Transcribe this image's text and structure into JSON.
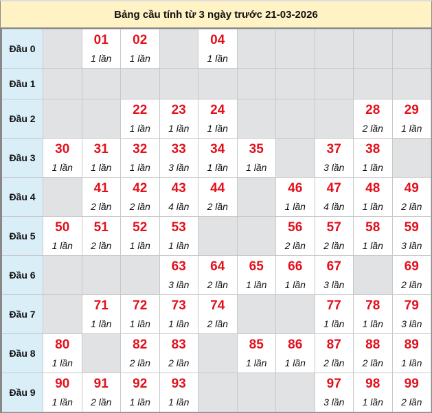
{
  "title": "Bảng cầu tính từ 3 ngày trước 21-03-2026",
  "colors": {
    "title_bg": "#fff2c4",
    "head_bg": "#daeef8",
    "empty_bg": "#e1e2e4",
    "number": "#e3101c"
  },
  "rows": [
    {
      "label": "Đầu 0",
      "cells": [
        null,
        {
          "num": "01",
          "count": "1 lần"
        },
        {
          "num": "02",
          "count": "1 lần"
        },
        null,
        {
          "num": "04",
          "count": "1 lần"
        },
        null,
        null,
        null,
        null,
        null
      ]
    },
    {
      "label": "Đầu 1",
      "cells": [
        null,
        null,
        null,
        null,
        null,
        null,
        null,
        null,
        null,
        null
      ]
    },
    {
      "label": "Đầu 2",
      "cells": [
        null,
        null,
        {
          "num": "22",
          "count": "1 lần"
        },
        {
          "num": "23",
          "count": "1 lần"
        },
        {
          "num": "24",
          "count": "1 lần"
        },
        null,
        null,
        null,
        {
          "num": "28",
          "count": "2 lần"
        },
        {
          "num": "29",
          "count": "1 lần"
        }
      ]
    },
    {
      "label": "Đầu 3",
      "cells": [
        {
          "num": "30",
          "count": "1 lần"
        },
        {
          "num": "31",
          "count": "1 lần"
        },
        {
          "num": "32",
          "count": "1 lần"
        },
        {
          "num": "33",
          "count": "3 lần"
        },
        {
          "num": "34",
          "count": "1 lần"
        },
        {
          "num": "35",
          "count": "1 lần"
        },
        null,
        {
          "num": "37",
          "count": "3 lần"
        },
        {
          "num": "38",
          "count": "1 lần"
        },
        null
      ]
    },
    {
      "label": "Đầu 4",
      "cells": [
        null,
        {
          "num": "41",
          "count": "2 lần"
        },
        {
          "num": "42",
          "count": "2 lần"
        },
        {
          "num": "43",
          "count": "4 lần"
        },
        {
          "num": "44",
          "count": "2 lần"
        },
        null,
        {
          "num": "46",
          "count": "1 lần"
        },
        {
          "num": "47",
          "count": "4 lần"
        },
        {
          "num": "48",
          "count": "1 lần"
        },
        {
          "num": "49",
          "count": "2 lần"
        }
      ]
    },
    {
      "label": "Đầu 5",
      "cells": [
        {
          "num": "50",
          "count": "1 lần"
        },
        {
          "num": "51",
          "count": "2 lần"
        },
        {
          "num": "52",
          "count": "1 lần"
        },
        {
          "num": "53",
          "count": "1 lần"
        },
        null,
        null,
        {
          "num": "56",
          "count": "2 lần"
        },
        {
          "num": "57",
          "count": "2 lần"
        },
        {
          "num": "58",
          "count": "1 lần"
        },
        {
          "num": "59",
          "count": "3 lần"
        }
      ]
    },
    {
      "label": "Đầu 6",
      "cells": [
        null,
        null,
        null,
        {
          "num": "63",
          "count": "3 lần"
        },
        {
          "num": "64",
          "count": "2 lần"
        },
        {
          "num": "65",
          "count": "1 lần"
        },
        {
          "num": "66",
          "count": "1 lần"
        },
        {
          "num": "67",
          "count": "3 lần"
        },
        null,
        {
          "num": "69",
          "count": "2 lần"
        }
      ]
    },
    {
      "label": "Đầu 7",
      "cells": [
        null,
        {
          "num": "71",
          "count": "1 lần"
        },
        {
          "num": "72",
          "count": "1 lần"
        },
        {
          "num": "73",
          "count": "1 lần"
        },
        {
          "num": "74",
          "count": "2 lần"
        },
        null,
        null,
        {
          "num": "77",
          "count": "1 lần"
        },
        {
          "num": "78",
          "count": "1 lần"
        },
        {
          "num": "79",
          "count": "3 lần"
        }
      ]
    },
    {
      "label": "Đầu 8",
      "cells": [
        {
          "num": "80",
          "count": "1 lần"
        },
        null,
        {
          "num": "82",
          "count": "2 lần"
        },
        {
          "num": "83",
          "count": "2 lần"
        },
        null,
        {
          "num": "85",
          "count": "1 lần"
        },
        {
          "num": "86",
          "count": "1 lần"
        },
        {
          "num": "87",
          "count": "2 lần"
        },
        {
          "num": "88",
          "count": "2 lần"
        },
        {
          "num": "89",
          "count": "1 lần"
        }
      ]
    },
    {
      "label": "Đầu 9",
      "cells": [
        {
          "num": "90",
          "count": "1 lần"
        },
        {
          "num": "91",
          "count": "2 lần"
        },
        {
          "num": "92",
          "count": "1 lần"
        },
        {
          "num": "93",
          "count": "1 lần"
        },
        null,
        null,
        null,
        {
          "num": "97",
          "count": "3 lần"
        },
        {
          "num": "98",
          "count": "1 lần"
        },
        {
          "num": "99",
          "count": "2 lần"
        }
      ]
    }
  ]
}
